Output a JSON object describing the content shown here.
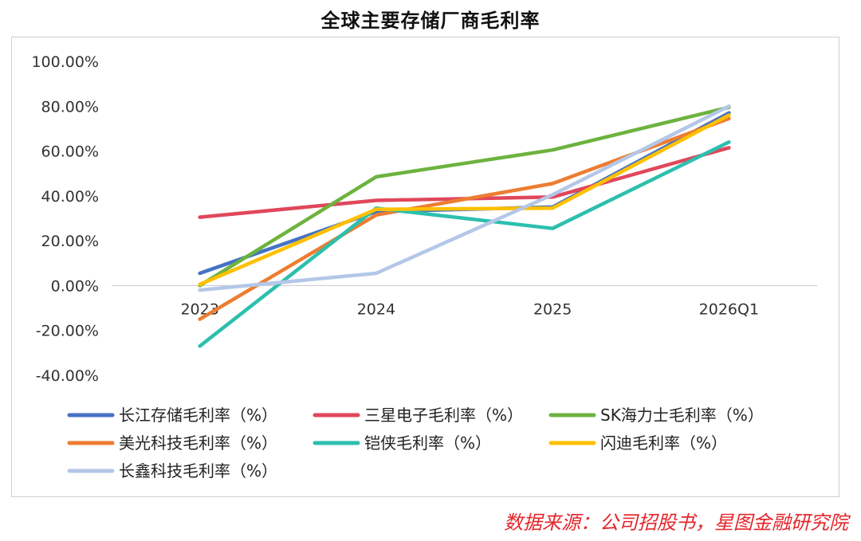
{
  "title": "全球主要存储厂商毛利率",
  "source": "数据来源：公司招股书，星图金融研究院",
  "chart_data": {
    "type": "line",
    "title": "全球主要存储厂商毛利率",
    "categories": [
      "2023",
      "2024",
      "2025",
      "2026Q1"
    ],
    "ylim": [
      -40,
      100
    ],
    "yticks": [
      "100.00%",
      "80.00%",
      "60.00%",
      "40.00%",
      "20.00%",
      "0.00%",
      "-20.00%",
      "-40.00%"
    ],
    "ytick_values": [
      100,
      80,
      60,
      40,
      20,
      0,
      -20,
      -40
    ],
    "grid": false,
    "legend_position": "bottom",
    "series": [
      {
        "name": "长江存储毛利率（%）",
        "color": "#4472c4",
        "values": [
          5.5,
          33,
          35,
          77
        ]
      },
      {
        "name": "三星电子毛利率（%）",
        "color": "#e0475b",
        "values": [
          30.5,
          38,
          39.5,
          61.5
        ]
      },
      {
        "name": "SK海力士毛利率（%）",
        "color": "#6db33f",
        "values": [
          0,
          48.5,
          60.5,
          79.5
        ]
      },
      {
        "name": "美光科技毛利率（%）",
        "color": "#ed7d31",
        "values": [
          -15,
          31.5,
          45.5,
          74.5
        ]
      },
      {
        "name": "铠侠毛利率（%）",
        "color": "#2cbfae",
        "values": [
          -27,
          34.5,
          25.5,
          64
        ]
      },
      {
        "name": "闪迪毛利率（%）",
        "color": "#ffc000",
        "values": [
          0.5,
          34,
          34.5,
          76
        ]
      },
      {
        "name": "长鑫科技毛利率（%）",
        "color": "#b4c7e7",
        "values": [
          -2,
          5.5,
          40.5,
          80
        ]
      }
    ]
  }
}
